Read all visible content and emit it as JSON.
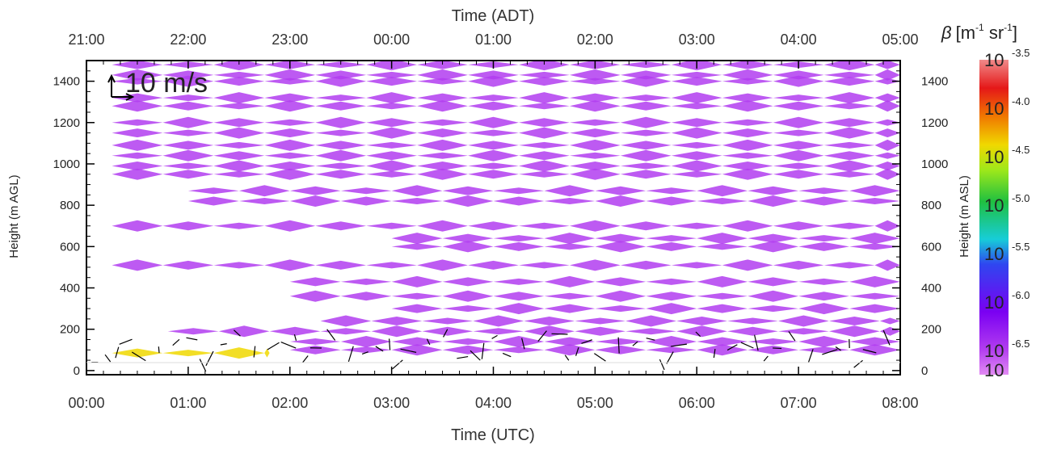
{
  "chart_data": {
    "type": "heatmap",
    "xlabel_bottom": "Time (UTC)",
    "xlabel_top": "Time (ADT)",
    "ylabel_left": "Height (m AGL)",
    "ylabel_right": "Height (m ASL)",
    "x_ticks_bottom": [
      "00:00",
      "01:00",
      "02:00",
      "03:00",
      "04:00",
      "05:00",
      "06:00",
      "07:00",
      "08:00"
    ],
    "x_ticks_top": [
      "21:00",
      "22:00",
      "23:00",
      "00:00",
      "01:00",
      "02:00",
      "03:00",
      "04:00",
      "05:00"
    ],
    "xlim_hours": [
      0,
      8
    ],
    "ylim_left": [
      -20,
      1500
    ],
    "y_ticks_left": [
      "0",
      "200",
      "400",
      "600",
      "800",
      "1000",
      "1200",
      "1400"
    ],
    "y_ticks_right": [
      "0",
      "200",
      "400",
      "600",
      "800",
      "1000",
      "1200",
      "1400"
    ],
    "wind_reference_label": "10 m/s",
    "colorbar": {
      "title": "β [m-1 sr-1]",
      "title_symbol": "β",
      "title_unit": "[m",
      "title_exp1": "-1",
      "title_mid": " sr",
      "title_exp2": "-1",
      "title_end": "]",
      "base": "10",
      "exponents": [
        "-3.5",
        "-4.0",
        "-4.5",
        "-5.0",
        "-5.5",
        "-6.0",
        "-6.5"
      ],
      "log_range": [
        -6.75,
        -3.5
      ],
      "colors": [
        "#e28bf3",
        "#b23df0",
        "#7a00f2",
        "#2f46f0",
        "#17cdd8",
        "#20c040",
        "#9ee81a",
        "#f0d800",
        "#f07800",
        "#e51818",
        "#f08a8a"
      ]
    },
    "backscatter_layers": [
      {
        "start": 0.25,
        "end": 8,
        "height": 1480,
        "log_beta": -6.55
      },
      {
        "start": 0.25,
        "end": 8,
        "height": 1430,
        "log_beta": -6.5
      },
      {
        "start": 0.25,
        "end": 8,
        "height": 1400,
        "log_beta": -6.4
      },
      {
        "start": 0.25,
        "end": 8,
        "height": 1320,
        "log_beta": -6.4
      },
      {
        "start": 0.25,
        "end": 8,
        "height": 1280,
        "log_beta": -6.5
      },
      {
        "start": 0.25,
        "end": 8,
        "height": 1200,
        "log_beta": -6.55
      },
      {
        "start": 0.25,
        "end": 8,
        "height": 1150,
        "log_beta": -6.5
      },
      {
        "start": 0.25,
        "end": 8,
        "height": 1090,
        "log_beta": -6.45
      },
      {
        "start": 0.25,
        "end": 8,
        "height": 1040,
        "log_beta": -6.5
      },
      {
        "start": 0.25,
        "end": 8,
        "height": 990,
        "log_beta": -6.5
      },
      {
        "start": 0.25,
        "end": 8,
        "height": 950,
        "log_beta": -6.55
      },
      {
        "start": 1.0,
        "end": 8,
        "height": 870,
        "log_beta": -6.5
      },
      {
        "start": 1.0,
        "end": 8,
        "height": 820,
        "log_beta": -6.55
      },
      {
        "start": 0.25,
        "end": 8,
        "height": 700,
        "log_beta": -6.55
      },
      {
        "start": 3.0,
        "end": 8,
        "height": 640,
        "log_beta": -6.5
      },
      {
        "start": 3.0,
        "end": 8,
        "height": 600,
        "log_beta": -6.55
      },
      {
        "start": 0.25,
        "end": 8,
        "height": 510,
        "log_beta": -6.5
      },
      {
        "start": 2.0,
        "end": 8,
        "height": 430,
        "log_beta": -6.55
      },
      {
        "start": 2.0,
        "end": 8,
        "height": 360,
        "log_beta": -6.5
      },
      {
        "start": 3.0,
        "end": 8,
        "height": 300,
        "log_beta": -6.45
      },
      {
        "start": 2.3,
        "end": 8,
        "height": 240,
        "log_beta": -6.45
      },
      {
        "start": 0.8,
        "end": 8,
        "height": 190,
        "log_beta": -6.4
      },
      {
        "start": 2.0,
        "end": 8,
        "height": 140,
        "log_beta": -6.35
      },
      {
        "start": 2.0,
        "end": 8,
        "height": 100,
        "log_beta": -6.3
      },
      {
        "start": 0.25,
        "end": 1.8,
        "height": 85,
        "log_beta": -4.6
      }
    ]
  }
}
